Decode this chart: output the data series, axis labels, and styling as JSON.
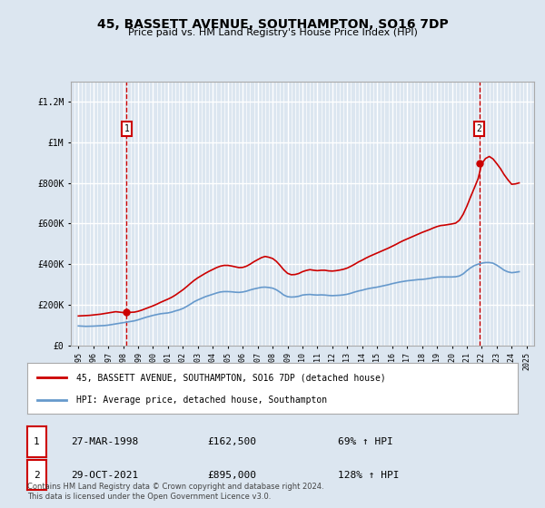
{
  "title": "45, BASSETT AVENUE, SOUTHAMPTON, SO16 7DP",
  "subtitle": "Price paid vs. HM Land Registry's House Price Index (HPI)",
  "bg_color": "#dce6f0",
  "plot_bg_color": "#dce6f0",
  "red_line_color": "#cc0000",
  "blue_line_color": "#6699cc",
  "grid_color": "#ffffff",
  "ylim": [
    0,
    1300000
  ],
  "yticks": [
    0,
    200000,
    400000,
    600000,
    800000,
    1000000,
    1200000
  ],
  "ytick_labels": [
    "£0",
    "£200K",
    "£400K",
    "£600K",
    "£800K",
    "£1M",
    "£1.2M"
  ],
  "xlim_start": 1994.5,
  "xlim_end": 2025.5,
  "xticks": [
    1995,
    1996,
    1997,
    1998,
    1999,
    2000,
    2001,
    2002,
    2003,
    2004,
    2005,
    2006,
    2007,
    2008,
    2009,
    2010,
    2011,
    2012,
    2013,
    2014,
    2015,
    2016,
    2017,
    2018,
    2019,
    2020,
    2021,
    2022,
    2023,
    2024,
    2025
  ],
  "sale1_x": 1998.23,
  "sale1_y": 162500,
  "sale1_label": "1",
  "sale1_date": "27-MAR-1998",
  "sale1_price": "£162,500",
  "sale1_hpi": "69% ↑ HPI",
  "sale2_x": 2021.83,
  "sale2_y": 895000,
  "sale2_label": "2",
  "sale2_date": "29-OCT-2021",
  "sale2_price": "£895,000",
  "sale2_hpi": "128% ↑ HPI",
  "legend_line1": "45, BASSETT AVENUE, SOUTHAMPTON, SO16 7DP (detached house)",
  "legend_line2": "HPI: Average price, detached house, Southampton",
  "footer": "Contains HM Land Registry data © Crown copyright and database right 2024.\nThis data is licensed under the Open Government Licence v3.0.",
  "hpi_data_x": [
    1995.0,
    1995.25,
    1995.5,
    1995.75,
    1996.0,
    1996.25,
    1996.5,
    1996.75,
    1997.0,
    1997.25,
    1997.5,
    1997.75,
    1998.0,
    1998.25,
    1998.5,
    1998.75,
    1999.0,
    1999.25,
    1999.5,
    1999.75,
    2000.0,
    2000.25,
    2000.5,
    2000.75,
    2001.0,
    2001.25,
    2001.5,
    2001.75,
    2002.0,
    2002.25,
    2002.5,
    2002.75,
    2003.0,
    2003.25,
    2003.5,
    2003.75,
    2004.0,
    2004.25,
    2004.5,
    2004.75,
    2005.0,
    2005.25,
    2005.5,
    2005.75,
    2006.0,
    2006.25,
    2006.5,
    2006.75,
    2007.0,
    2007.25,
    2007.5,
    2007.75,
    2008.0,
    2008.25,
    2008.5,
    2008.75,
    2009.0,
    2009.25,
    2009.5,
    2009.75,
    2010.0,
    2010.25,
    2010.5,
    2010.75,
    2011.0,
    2011.25,
    2011.5,
    2011.75,
    2012.0,
    2012.25,
    2012.5,
    2012.75,
    2013.0,
    2013.25,
    2013.5,
    2013.75,
    2014.0,
    2014.25,
    2014.5,
    2014.75,
    2015.0,
    2015.25,
    2015.5,
    2015.75,
    2016.0,
    2016.25,
    2016.5,
    2016.75,
    2017.0,
    2017.25,
    2017.5,
    2017.75,
    2018.0,
    2018.25,
    2018.5,
    2018.75,
    2019.0,
    2019.25,
    2019.5,
    2019.75,
    2020.0,
    2020.25,
    2020.5,
    2020.75,
    2021.0,
    2021.25,
    2021.5,
    2021.75,
    2022.0,
    2022.25,
    2022.5,
    2022.75,
    2023.0,
    2023.25,
    2023.5,
    2023.75,
    2024.0,
    2024.25,
    2024.5
  ],
  "hpi_data_y": [
    96000,
    95000,
    94000,
    94500,
    95000,
    96000,
    97000,
    98000,
    100000,
    103000,
    106000,
    109000,
    112000,
    115000,
    118000,
    121000,
    126000,
    132000,
    138000,
    143000,
    148000,
    152000,
    156000,
    158000,
    160000,
    164000,
    170000,
    175000,
    182000,
    192000,
    203000,
    215000,
    224000,
    232000,
    240000,
    246000,
    252000,
    258000,
    263000,
    265000,
    265000,
    264000,
    262000,
    261000,
    263000,
    267000,
    273000,
    278000,
    282000,
    286000,
    287000,
    285000,
    282000,
    274000,
    262000,
    248000,
    240000,
    238000,
    239000,
    242000,
    248000,
    250000,
    251000,
    249000,
    248000,
    249000,
    248000,
    246000,
    245000,
    246000,
    247000,
    249000,
    252000,
    257000,
    263000,
    268000,
    272000,
    277000,
    281000,
    284000,
    287000,
    291000,
    295000,
    299000,
    304000,
    308000,
    312000,
    315000,
    318000,
    320000,
    322000,
    324000,
    325000,
    327000,
    330000,
    333000,
    336000,
    337000,
    337000,
    337000,
    337000,
    338000,
    342000,
    352000,
    368000,
    382000,
    393000,
    400000,
    405000,
    408000,
    408000,
    405000,
    395000,
    383000,
    370000,
    362000,
    358000,
    360000,
    363000
  ],
  "red_data_x": [
    1995.0,
    1995.25,
    1995.5,
    1995.75,
    1996.0,
    1996.25,
    1996.5,
    1996.75,
    1997.0,
    1997.25,
    1997.5,
    1997.75,
    1998.0,
    1998.25,
    1998.5,
    1998.75,
    1999.0,
    1999.25,
    1999.5,
    1999.75,
    2000.0,
    2000.25,
    2000.5,
    2000.75,
    2001.0,
    2001.25,
    2001.5,
    2001.75,
    2002.0,
    2002.25,
    2002.5,
    2002.75,
    2003.0,
    2003.25,
    2003.5,
    2003.75,
    2004.0,
    2004.25,
    2004.5,
    2004.75,
    2005.0,
    2005.25,
    2005.5,
    2005.75,
    2006.0,
    2006.25,
    2006.5,
    2006.75,
    2007.0,
    2007.25,
    2007.5,
    2007.75,
    2008.0,
    2008.25,
    2008.5,
    2008.75,
    2009.0,
    2009.25,
    2009.5,
    2009.75,
    2010.0,
    2010.25,
    2010.5,
    2010.75,
    2011.0,
    2011.25,
    2011.5,
    2011.75,
    2012.0,
    2012.25,
    2012.5,
    2012.75,
    2013.0,
    2013.25,
    2013.5,
    2013.75,
    2014.0,
    2014.25,
    2014.5,
    2014.75,
    2015.0,
    2015.25,
    2015.5,
    2015.75,
    2016.0,
    2016.25,
    2016.5,
    2016.75,
    2017.0,
    2017.25,
    2017.5,
    2017.75,
    2018.0,
    2018.25,
    2018.5,
    2018.75,
    2019.0,
    2019.25,
    2019.5,
    2019.75,
    2020.0,
    2020.25,
    2020.5,
    2020.75,
    2021.0,
    2021.25,
    2021.5,
    2021.75,
    2022.0,
    2022.25,
    2022.5,
    2022.75,
    2023.0,
    2023.25,
    2023.5,
    2023.75,
    2024.0,
    2024.25,
    2024.5
  ],
  "red_data_y": [
    145000,
    146000,
    147000,
    148000,
    150000,
    152000,
    154000,
    157000,
    160000,
    163000,
    166000,
    164000,
    162000,
    162500,
    163000,
    164000,
    168000,
    174000,
    181000,
    188000,
    195000,
    203000,
    212000,
    220000,
    228000,
    237000,
    248000,
    261000,
    274000,
    289000,
    305000,
    320000,
    333000,
    344000,
    355000,
    365000,
    374000,
    383000,
    390000,
    394000,
    394000,
    391000,
    387000,
    383000,
    384000,
    390000,
    400000,
    412000,
    422000,
    432000,
    438000,
    434000,
    428000,
    414000,
    394000,
    372000,
    355000,
    348000,
    349000,
    354000,
    363000,
    369000,
    373000,
    370000,
    368000,
    370000,
    370000,
    367000,
    366000,
    368000,
    371000,
    375000,
    381000,
    390000,
    400000,
    411000,
    420000,
    430000,
    439000,
    447000,
    455000,
    463000,
    471000,
    479000,
    488000,
    497000,
    507000,
    516000,
    524000,
    532000,
    540000,
    548000,
    556000,
    563000,
    570000,
    578000,
    585000,
    590000,
    592000,
    595000,
    598000,
    602000,
    616000,
    645000,
    685000,
    731000,
    775000,
    820000,
    895000,
    920000,
    930000,
    918000,
    895000,
    870000,
    840000,
    815000,
    793000,
    795000,
    800000
  ]
}
